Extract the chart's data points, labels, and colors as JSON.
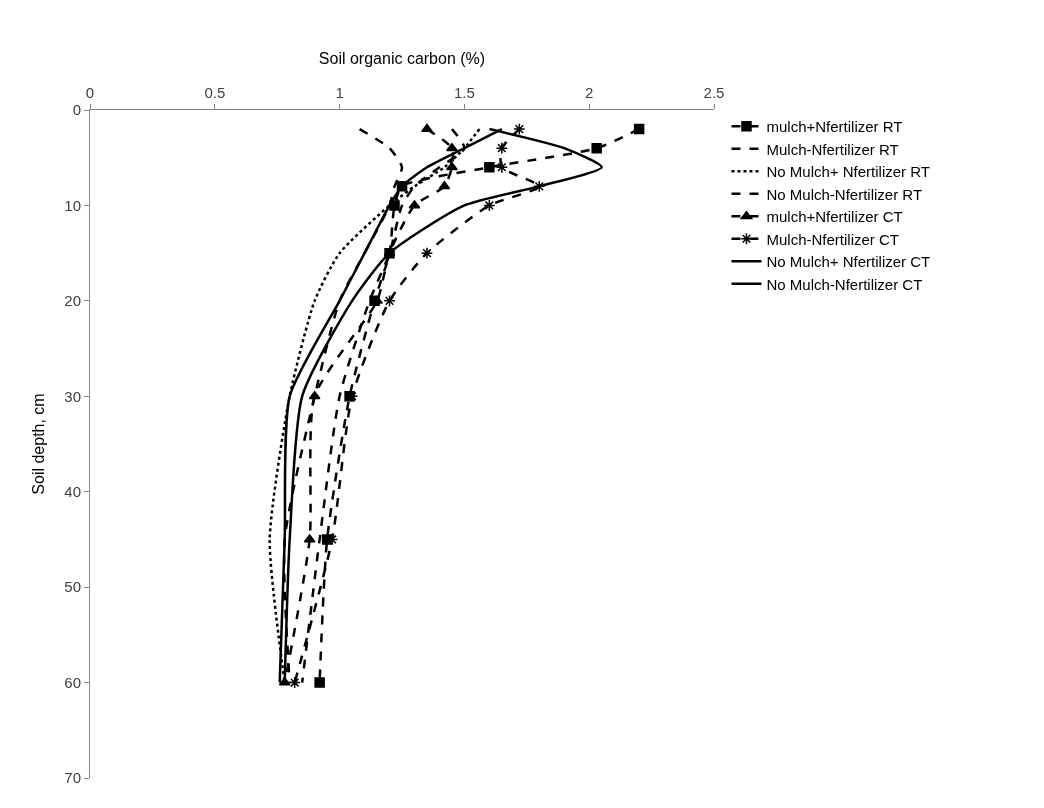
{
  "chart_data": {
    "type": "line",
    "xlabel": "Soil organic carbon (%)",
    "ylabel": "Soil depth, cm",
    "xlim": [
      0,
      2.5
    ],
    "xticks": [
      0,
      0.5,
      1,
      1.5,
      2,
      2.5
    ],
    "ylim": [
      70,
      0
    ],
    "yticks": [
      0,
      10,
      20,
      30,
      40,
      50,
      60,
      70
    ],
    "legend": "right",
    "series": [
      {
        "name": "mulch+Nfertilizer RT",
        "color": "#000000",
        "line_style": "dashed",
        "marker": "square",
        "x": [
          2.2,
          2.03,
          1.6,
          1.25,
          1.22,
          1.2,
          1.14,
          1.04,
          0.95,
          0.92
        ],
        "values": [
          2,
          4,
          6,
          8,
          10,
          15,
          20,
          30,
          45,
          60
        ]
      },
      {
        "name": "Mulch-Nfertilizer RT",
        "color": "#000000",
        "line_style": "dashed",
        "marker": "none",
        "x": [
          1.45,
          1.5,
          1.4,
          1.3,
          1.25,
          1.2,
          1.12,
          1.0,
          0.92,
          0.85
        ],
        "values": [
          2,
          4,
          6,
          8,
          10,
          15,
          20,
          30,
          45,
          60
        ]
      },
      {
        "name": "No Mulch+ Nfertilizer RT",
        "color": "#000000",
        "line_style": "dotted",
        "marker": "none",
        "x": [
          1.56,
          1.5,
          1.42,
          1.3,
          1.2,
          1.0,
          0.9,
          0.8,
          0.72,
          0.78
        ],
        "values": [
          2,
          4,
          6,
          8,
          10,
          15,
          20,
          30,
          45,
          60
        ]
      },
      {
        "name": "No Mulch-Nfertilizer RT",
        "color": "#000000",
        "line_style": "dashed",
        "marker": "none",
        "x": [
          1.08,
          1.2,
          1.25,
          1.22,
          1.2,
          1.1,
          1.0,
          0.9,
          0.78,
          0.8
        ],
        "values": [
          2,
          4,
          6,
          8,
          10,
          15,
          20,
          30,
          45,
          60
        ]
      },
      {
        "name": "mulch+Nfertilizer CT",
        "color": "#000000",
        "line_style": "dashed",
        "marker": "triangle",
        "x": [
          1.35,
          1.45,
          1.45,
          1.42,
          1.3,
          1.2,
          1.15,
          0.9,
          0.88,
          0.78
        ],
        "values": [
          2,
          4,
          6,
          8,
          10,
          15,
          20,
          30,
          45,
          60
        ]
      },
      {
        "name": "Mulch-Nfertilizer CT",
        "color": "#000000",
        "line_style": "dashed",
        "marker": "cross",
        "x": [
          1.72,
          1.65,
          1.65,
          1.8,
          1.6,
          1.35,
          1.2,
          1.05,
          0.97,
          0.82
        ],
        "values": [
          2,
          4,
          6,
          8,
          10,
          15,
          20,
          30,
          45,
          60
        ]
      },
      {
        "name": "No Mulch+ Nfertilizer CT",
        "color": "#000000",
        "line_style": "solid",
        "marker": "none",
        "x": [
          1.6,
          1.9,
          2.05,
          1.8,
          1.5,
          1.2,
          1.05,
          0.85,
          0.8,
          0.78
        ],
        "values": [
          2,
          4,
          6,
          8,
          10,
          15,
          20,
          30,
          45,
          60
        ]
      },
      {
        "name": "No Mulch-Nfertilizer CT",
        "color": "#000000",
        "line_style": "solid",
        "marker": "none",
        "x": [
          1.65,
          1.5,
          1.35,
          1.25,
          1.2,
          1.1,
          1.0,
          0.8,
          0.78,
          0.76
        ],
        "values": [
          2,
          4,
          6,
          8,
          10,
          15,
          20,
          30,
          45,
          60
        ]
      }
    ]
  }
}
